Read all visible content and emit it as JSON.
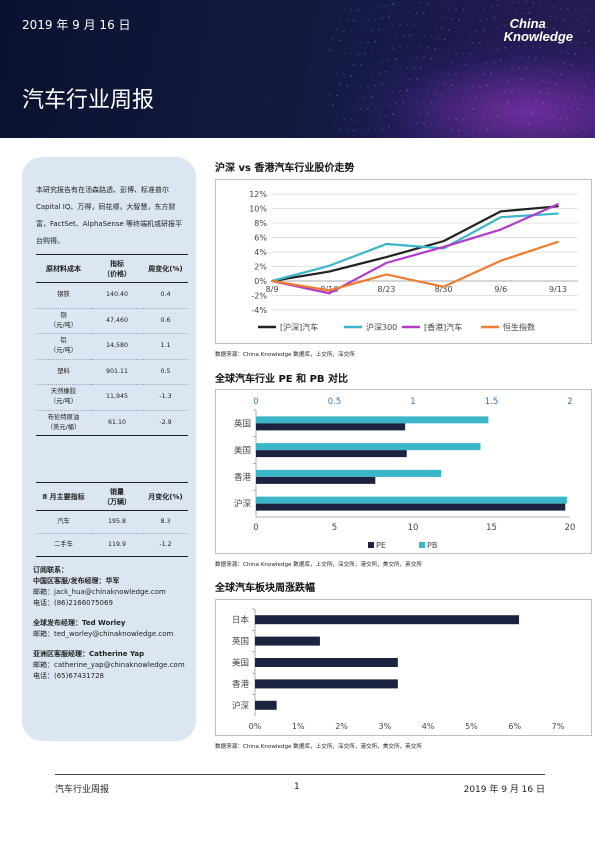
{
  "header": {
    "date": "2019 年 9 月 16 日",
    "title": "汽车行业周报",
    "logo_line1": "China",
    "logo_line2": "Knowledge"
  },
  "sidebar": {
    "intro": "本研究报告有在汤森路透、彭博、标准普尔Capital IQ、万得，同花顺，大智慧，东方财富，FactSet、AlphaSense 等终端机或研报平台购得。",
    "materials_table": {
      "headers": [
        "原材料成本",
        "指标\n（价格）",
        "周变化(%)"
      ],
      "rows": [
        [
          "钢铁",
          "140.40",
          "0.4"
        ],
        [
          "铜\n（元/吨）",
          "47,460",
          "0.6"
        ],
        [
          "铝\n（元/吨）",
          "14,580",
          "1.1"
        ],
        [
          "塑料",
          "901.11",
          "0.5"
        ],
        [
          "天然橡胶\n（元/吨）",
          "11,945",
          "-1.3"
        ],
        [
          "布伦特原油\n（美元/桶）",
          "61.10",
          "-2.9"
        ]
      ]
    },
    "august_table": {
      "headers": [
        "8 月主要指标",
        "销量\n（万辆）",
        "月变化(%)"
      ],
      "rows": [
        [
          "汽车",
          "195.8",
          "8.3"
        ],
        [
          "二手车",
          "119.9",
          "-1.2"
        ]
      ]
    },
    "contacts": {
      "heading": "订阅联系：",
      "blocks": [
        {
          "title": "中国区客服/发布经理：华军",
          "lines": [
            "邮箱：jack_hua@chinaknowledge.com",
            "电话：(86)2166075069"
          ]
        },
        {
          "title": "全球发布经理：Ted Worley",
          "lines": [
            "邮箱：ted_worley@chinaknowledge.com"
          ]
        },
        {
          "title": "亚洲区客服经理：Catherine Yap",
          "lines": [
            "邮箱：catherine_yap@chinaknowledge.com",
            "电话：(65)67431728"
          ]
        }
      ]
    }
  },
  "sections": {
    "s1_title": "沪深 vs 香港汽车行业股价走势",
    "s1_source": "数据来源：China Knowledge 数据库，上交所，深交所",
    "s2_title": "全球汽车行业 PE 和 PB 对比",
    "s2_source": "数据来源：China Knowledge 数据库，上交所，深交所，港交所，美交所，英交所",
    "s3_title": "全球汽车板块周涨跌幅",
    "s3_source": "数据来源：China Knowledge 数据库，上交所，深交所，港交所，美交所，英交所"
  },
  "colors": {
    "black_series": "#222222",
    "teal_series": "#3bb6c8",
    "purple_series": "#b03cc8",
    "orange_series": "#ee7d31",
    "pb_bar": "#3bb6c8",
    "pe_bar": "#1c2340",
    "weekly_bar": "#1c2340",
    "axis_text_blue": "#2e75b6"
  },
  "chart_data": [
    {
      "type": "line",
      "x": [
        "8/9",
        "8/16",
        "8/23",
        "8/30",
        "9/6",
        "9/13"
      ],
      "ylim": [
        -4,
        12
      ],
      "yticks": [
        "12%",
        "10%",
        "8%",
        "6%",
        "4%",
        "2%",
        "0%",
        "-2%",
        "-4%"
      ],
      "grid": true,
      "legend_position": "bottom",
      "series": [
        {
          "name": "[沪深]汽车",
          "color": "#222222",
          "values": [
            0.0,
            1.3,
            3.3,
            5.5,
            9.6,
            10.3
          ]
        },
        {
          "name": "沪深300",
          "color": "#3bb6c8",
          "values": [
            0.0,
            2.1,
            5.1,
            4.5,
            8.8,
            9.3
          ]
        },
        {
          "name": "[香港]汽车",
          "color": "#b03cc8",
          "values": [
            0.0,
            -1.7,
            2.5,
            4.7,
            7.1,
            10.6
          ]
        },
        {
          "name": "恒生指数",
          "color": "#ee7d31",
          "values": [
            0.0,
            -1.3,
            0.9,
            -0.8,
            2.8,
            5.4
          ]
        }
      ]
    },
    {
      "type": "bar",
      "orientation": "horizontal",
      "categories": [
        "英国",
        "美国",
        "香港",
        "沪深"
      ],
      "series": [
        {
          "name": "PE",
          "axis": "bottom",
          "values": [
            9.5,
            9.6,
            7.6,
            19.7
          ]
        },
        {
          "name": "PB",
          "axis": "top",
          "values": [
            1.48,
            1.43,
            1.18,
            1.98
          ]
        }
      ],
      "pe_axis": {
        "min": 0,
        "max": 20,
        "ticks": [
          "0",
          "5",
          "10",
          "15",
          "20"
        ]
      },
      "pb_axis": {
        "min": 0,
        "max": 2,
        "ticks": [
          "0",
          "0.5",
          "1",
          "1.5",
          "2"
        ]
      },
      "legend_position": "bottom"
    },
    {
      "type": "bar",
      "orientation": "horizontal",
      "categories": [
        "日本",
        "英国",
        "美国",
        "香港",
        "沪深"
      ],
      "values": [
        6.1,
        1.5,
        3.3,
        3.3,
        0.5
      ],
      "xlim": [
        0,
        7
      ],
      "xticks": [
        "0%",
        "1%",
        "2%",
        "3%",
        "4%",
        "5%",
        "6%",
        "7%"
      ]
    }
  ],
  "footer": {
    "left": "汽车行业周报",
    "page": "1",
    "right": "2019 年 9 月 16 日"
  }
}
